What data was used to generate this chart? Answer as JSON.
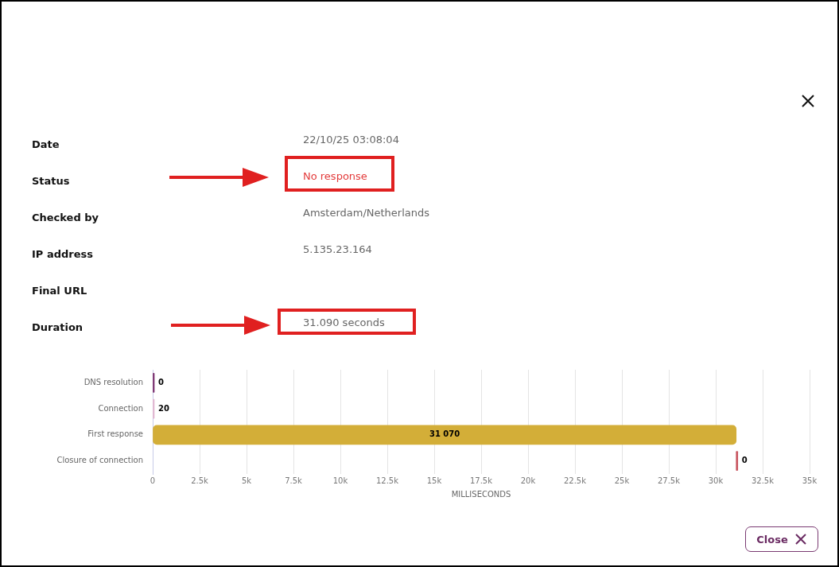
{
  "chart_data": [
    {
      "type": "other",
      "categories": [
        "Date",
        "Status",
        "Checked by",
        "IP address",
        "Final URL",
        "Duration"
      ],
      "value_labels": [
        "22/10/25 03:08:04",
        "No response",
        "Amsterdam/Netherlands",
        "5.135.23.164",
        null,
        "31.090 seconds"
      ],
      "annotations": [
        "Close"
      ]
    },
    {
      "type": "bar",
      "orientation": "horizontal",
      "categories": [
        "DNS resolution",
        "Connection",
        "First response",
        "Closure of connection"
      ],
      "base": [
        0,
        0,
        20,
        31090
      ],
      "values": [
        0,
        20,
        31070,
        0
      ],
      "colors": [
        "#7a2e6e",
        "#e3b8d2",
        "#d3ae38",
        "#c8545f"
      ],
      "value_labels": [
        "0",
        "20",
        "31 070",
        "0"
      ],
      "xlim": [
        0,
        35000
      ],
      "xticks": [
        0,
        {
          "value": 2500,
          "label": "2.5k"
        },
        {
          "value": 5000,
          "label": "5k"
        },
        {
          "value": 7500,
          "label": "7.5k"
        },
        {
          "value": 10000,
          "label": "10k"
        },
        {
          "value": 12500,
          "label": "12.5k"
        },
        {
          "value": 15000,
          "label": "15k"
        },
        {
          "value": 17500,
          "label": "17.5k"
        },
        {
          "value": 20000,
          "label": "20k"
        },
        {
          "value": 22500,
          "label": "22.5k"
        },
        {
          "value": 25000,
          "label": "25k"
        },
        {
          "value": 27500,
          "label": "27.5k"
        },
        {
          "value": 30000,
          "label": "30k"
        },
        {
          "value": 32500,
          "label": "32.5k"
        },
        {
          "value": 35000,
          "label": "35k"
        }
      ],
      "xlabel": "MILLISECONDS",
      "grid": "x",
      "legend": false
    }
  ]
}
